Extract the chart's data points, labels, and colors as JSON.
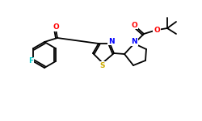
{
  "bg_color": "#ffffff",
  "bond_color": "#000000",
  "atom_colors": {
    "F": "#00cccc",
    "O": "#ff0000",
    "N": "#0000ff",
    "S": "#ccaa00",
    "C": "#000000"
  },
  "figsize": [
    2.5,
    1.5
  ],
  "dpi": 100
}
